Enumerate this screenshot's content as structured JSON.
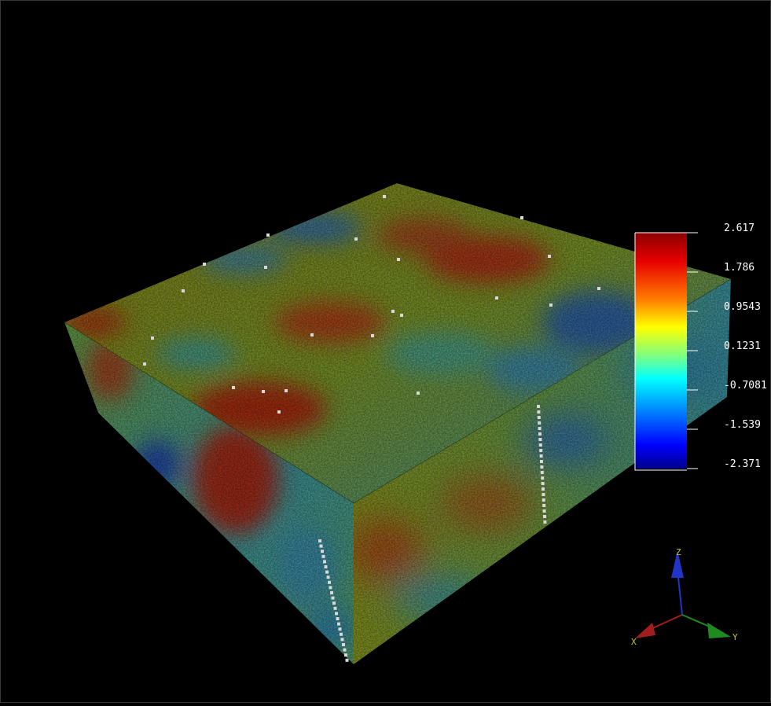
{
  "viewer": {
    "scene": "3D property grid block with well markers"
  },
  "color_legend": {
    "ticks": [
      "2.617",
      "1.786",
      "0.9543",
      "0.1231",
      "-0.7081",
      "-1.539",
      "-2.371"
    ],
    "max": 2.617,
    "min": -2.371,
    "colormap": "jet"
  },
  "axes_triad": {
    "z_label": "Z",
    "x_label": "X",
    "y_label": "Y",
    "z_color": "#2233c8",
    "x_color": "#a01e1e",
    "y_color": "#1f8a1f"
  }
}
